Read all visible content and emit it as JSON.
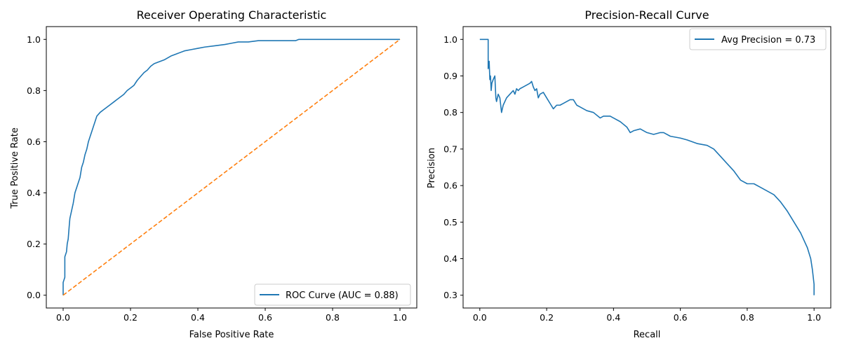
{
  "chart_data": [
    {
      "type": "line",
      "title": "Receiver Operating Characteristic",
      "xlabel": "False Positive Rate",
      "ylabel": "True Positive Rate",
      "xlim": [
        -0.05,
        1.05
      ],
      "ylim": [
        -0.05,
        1.05
      ],
      "xticks": [
        "0.0",
        "0.2",
        "0.4",
        "0.6",
        "0.8",
        "1.0"
      ],
      "yticks": [
        "0.0",
        "0.2",
        "0.4",
        "0.6",
        "0.8",
        "1.0"
      ],
      "grid": false,
      "legend": {
        "position": "lower-right",
        "entries": [
          "ROC Curve (AUC = 0.88)"
        ]
      },
      "series": [
        {
          "name": "ROC Curve (AUC = 0.88)",
          "color": "#1f77b4",
          "style": "solid",
          "x": [
            0.0,
            0.0,
            0.005,
            0.005,
            0.01,
            0.012,
            0.015,
            0.018,
            0.02,
            0.025,
            0.03,
            0.035,
            0.04,
            0.045,
            0.05,
            0.055,
            0.06,
            0.065,
            0.07,
            0.075,
            0.08,
            0.085,
            0.09,
            0.095,
            0.1,
            0.11,
            0.12,
            0.13,
            0.14,
            0.15,
            0.16,
            0.17,
            0.18,
            0.19,
            0.2,
            0.21,
            0.22,
            0.23,
            0.24,
            0.25,
            0.26,
            0.27,
            0.28,
            0.3,
            0.32,
            0.34,
            0.36,
            0.38,
            0.4,
            0.42,
            0.45,
            0.48,
            0.5,
            0.52,
            0.55,
            0.58,
            0.6,
            0.65,
            0.69,
            0.7,
            0.75,
            0.8,
            0.9,
            1.0
          ],
          "y": [
            0.0,
            0.05,
            0.07,
            0.15,
            0.17,
            0.2,
            0.22,
            0.27,
            0.3,
            0.33,
            0.36,
            0.4,
            0.42,
            0.44,
            0.46,
            0.5,
            0.52,
            0.55,
            0.57,
            0.6,
            0.62,
            0.64,
            0.66,
            0.68,
            0.7,
            0.715,
            0.725,
            0.735,
            0.745,
            0.755,
            0.765,
            0.775,
            0.785,
            0.8,
            0.81,
            0.82,
            0.84,
            0.855,
            0.87,
            0.88,
            0.895,
            0.905,
            0.91,
            0.92,
            0.935,
            0.945,
            0.955,
            0.96,
            0.965,
            0.97,
            0.975,
            0.98,
            0.985,
            0.99,
            0.99,
            0.995,
            0.995,
            0.995,
            0.995,
            1.0,
            1.0,
            1.0,
            1.0,
            1.0
          ]
        },
        {
          "name": "",
          "color": "#ff7f0e",
          "style": "dashed",
          "x": [
            0.0,
            1.0
          ],
          "y": [
            0.0,
            1.0
          ]
        }
      ]
    },
    {
      "type": "line",
      "title": "Precision-Recall Curve",
      "xlabel": "Recall",
      "ylabel": "Precision",
      "xlim": [
        -0.05,
        1.05
      ],
      "ylim": [
        0.265,
        1.035
      ],
      "xticks": [
        "0.0",
        "0.2",
        "0.4",
        "0.6",
        "0.8",
        "1.0"
      ],
      "yticks": [
        "0.3",
        "0.4",
        "0.5",
        "0.6",
        "0.7",
        "0.8",
        "0.9",
        "1.0"
      ],
      "grid": false,
      "legend": {
        "position": "top-right",
        "entries": [
          "Avg Precision = 0.73"
        ]
      },
      "series": [
        {
          "name": "Avg Precision = 0.73",
          "color": "#1f77b4",
          "style": "solid",
          "x": [
            0.0,
            0.025,
            0.025,
            0.028,
            0.03,
            0.032,
            0.034,
            0.036,
            0.04,
            0.045,
            0.048,
            0.05,
            0.055,
            0.06,
            0.065,
            0.07,
            0.08,
            0.09,
            0.1,
            0.105,
            0.11,
            0.115,
            0.12,
            0.13,
            0.14,
            0.15,
            0.155,
            0.16,
            0.165,
            0.17,
            0.175,
            0.18,
            0.19,
            0.2,
            0.21,
            0.22,
            0.23,
            0.24,
            0.25,
            0.26,
            0.27,
            0.28,
            0.29,
            0.3,
            0.32,
            0.34,
            0.36,
            0.37,
            0.38,
            0.39,
            0.4,
            0.42,
            0.44,
            0.45,
            0.46,
            0.48,
            0.5,
            0.52,
            0.54,
            0.55,
            0.57,
            0.6,
            0.62,
            0.65,
            0.68,
            0.7,
            0.72,
            0.74,
            0.76,
            0.78,
            0.8,
            0.82,
            0.84,
            0.86,
            0.88,
            0.9,
            0.92,
            0.94,
            0.96,
            0.97,
            0.98,
            0.99,
            0.995,
            1.0,
            1.0
          ],
          "y": [
            1.0,
            1.0,
            0.92,
            0.94,
            0.89,
            0.9,
            0.86,
            0.88,
            0.89,
            0.9,
            0.84,
            0.83,
            0.85,
            0.84,
            0.8,
            0.82,
            0.84,
            0.85,
            0.86,
            0.85,
            0.865,
            0.86,
            0.865,
            0.87,
            0.875,
            0.88,
            0.885,
            0.87,
            0.86,
            0.865,
            0.84,
            0.85,
            0.855,
            0.84,
            0.825,
            0.81,
            0.82,
            0.82,
            0.825,
            0.83,
            0.835,
            0.835,
            0.82,
            0.815,
            0.805,
            0.8,
            0.785,
            0.79,
            0.79,
            0.79,
            0.785,
            0.775,
            0.76,
            0.745,
            0.75,
            0.755,
            0.745,
            0.74,
            0.745,
            0.745,
            0.735,
            0.73,
            0.725,
            0.715,
            0.71,
            0.7,
            0.68,
            0.66,
            0.64,
            0.615,
            0.605,
            0.605,
            0.595,
            0.585,
            0.575,
            0.555,
            0.53,
            0.5,
            0.47,
            0.45,
            0.43,
            0.4,
            0.37,
            0.33,
            0.3
          ]
        }
      ]
    }
  ]
}
